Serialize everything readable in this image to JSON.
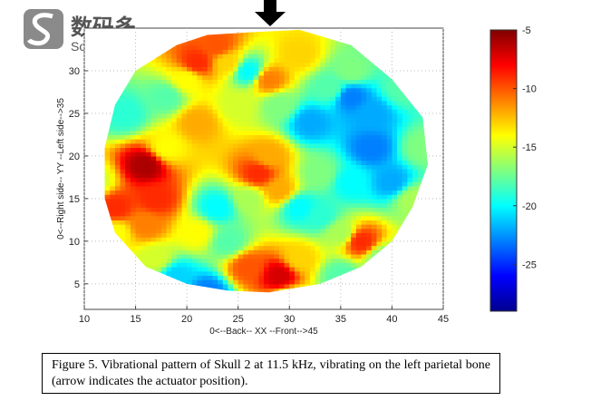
{
  "watermark": {
    "name": "数码多",
    "site": "Soomal.com"
  },
  "chart_data": {
    "type": "heatmap",
    "xlabel": "0<--Back-- XX --Front-->45",
    "ylabel": "0<--Right side-- YY --Left side-->35",
    "xlim": [
      10,
      45
    ],
    "ylim": [
      2,
      35
    ],
    "x_ticks": [
      10,
      15,
      20,
      25,
      30,
      35,
      40,
      45
    ],
    "y_ticks": [
      5,
      10,
      15,
      20,
      25,
      30
    ],
    "grid": true,
    "colorbar": {
      "range": [
        -29,
        -5
      ],
      "ticks": [
        -5,
        -10,
        -15,
        -20,
        -25
      ],
      "colormap": "jet"
    },
    "boundary": [
      [
        26,
        34.5
      ],
      [
        31,
        34.8
      ],
      [
        36,
        33
      ],
      [
        40,
        29
      ],
      [
        43,
        24.5
      ],
      [
        43.5,
        19
      ],
      [
        42,
        14
      ],
      [
        40,
        10
      ],
      [
        37,
        7
      ],
      [
        33,
        5
      ],
      [
        28,
        4
      ],
      [
        24,
        4.2
      ],
      [
        20,
        5
      ],
      [
        16,
        7
      ],
      [
        13,
        11
      ],
      [
        12,
        15
      ],
      [
        12,
        21
      ],
      [
        13,
        26
      ],
      [
        15,
        30
      ],
      [
        19,
        33
      ],
      [
        22,
        34.2
      ]
    ],
    "points": [
      [
        11,
        17,
        -15
      ],
      [
        13,
        14,
        -9
      ],
      [
        13,
        11,
        -14
      ],
      [
        16,
        19,
        -6
      ],
      [
        18,
        21,
        -14
      ],
      [
        17,
        15,
        -9
      ],
      [
        16,
        12,
        -11
      ],
      [
        14,
        25,
        -19
      ],
      [
        18,
        27,
        -18
      ],
      [
        20,
        29,
        -14
      ],
      [
        21,
        24,
        -12
      ],
      [
        21,
        31,
        -9
      ],
      [
        23,
        33,
        -10
      ],
      [
        24,
        31,
        -13
      ],
      [
        26,
        30,
        -20
      ],
      [
        28,
        29,
        -11
      ],
      [
        29,
        26,
        -17
      ],
      [
        31,
        32,
        -13
      ],
      [
        32,
        24,
        -22
      ],
      [
        34,
        28,
        -18
      ],
      [
        36,
        27,
        -23
      ],
      [
        38,
        25,
        -22
      ],
      [
        41,
        28,
        -18
      ],
      [
        38,
        21,
        -23
      ],
      [
        43,
        21,
        -17
      ],
      [
        42,
        15,
        -16
      ],
      [
        40,
        17,
        -22
      ],
      [
        36,
        17,
        -20
      ],
      [
        33,
        18,
        -17
      ],
      [
        33,
        13,
        -19
      ],
      [
        31,
        14,
        -20
      ],
      [
        28,
        20,
        -12
      ],
      [
        27,
        18,
        -9
      ],
      [
        29,
        16,
        -12
      ],
      [
        26,
        15,
        -16
      ],
      [
        23,
        14,
        -20
      ],
      [
        21,
        11,
        -14
      ],
      [
        24,
        10,
        -18
      ],
      [
        26,
        7,
        -10
      ],
      [
        29,
        6,
        -7
      ],
      [
        31,
        8,
        -13
      ],
      [
        35,
        11,
        -16
      ],
      [
        37,
        10,
        -9
      ],
      [
        39,
        8,
        -17
      ],
      [
        35,
        6,
        -18
      ],
      [
        22,
        4,
        -23
      ],
      [
        19,
        6,
        -21
      ],
      [
        17,
        8,
        -15
      ],
      [
        25,
        26,
        -15
      ],
      [
        36,
        30,
        -17
      ],
      [
        30,
        3,
        -16
      ]
    ]
  },
  "caption": "Figure 5. Vibrational pattern of Skull 2 at 11.5 kHz, vibrating on the left parietal bone (arrow indicates the actuator position)."
}
